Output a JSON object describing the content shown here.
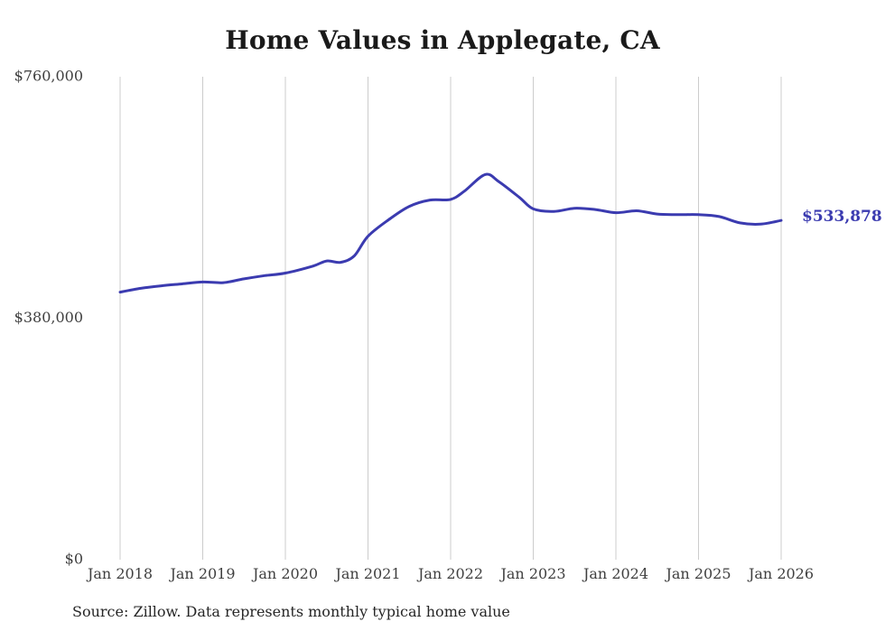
{
  "title": "Home Values in Applegate, CA",
  "source_note": "Source: Zillow. Data represents monthly typical home value",
  "end_label": "$533,878",
  "colors": {
    "line": "#3b3bb0",
    "grid": "#cccccc",
    "tick_text": "#3f3f3f",
    "title_text": "#1a1a1a"
  },
  "chart_data": {
    "type": "line",
    "title": "Home Values in Applegate, CA",
    "xlabel": "",
    "ylabel": "",
    "ylim": [
      0,
      760000
    ],
    "grid": "vertical-only",
    "legend": false,
    "x_tick_labels": [
      "Jan 2018",
      "Jan 2019",
      "Jan 2020",
      "Jan 2021",
      "Jan 2022",
      "Jan 2023",
      "Jan 2024",
      "Jan 2025",
      "Jan 2026"
    ],
    "y_ticks": [
      {
        "label": "$0",
        "value": 0
      },
      {
        "label": "$380,000",
        "value": 380000
      },
      {
        "label": "$760,000",
        "value": 760000
      }
    ],
    "series": [
      {
        "name": "Monthly typical home value",
        "end_value": 533878,
        "points_note": "x = months since Jan 2018, y = USD (estimated from plot)",
        "points": [
          [
            0,
            421000
          ],
          [
            3,
            427000
          ],
          [
            6,
            431000
          ],
          [
            9,
            434000
          ],
          [
            12,
            437000
          ],
          [
            15,
            436000
          ],
          [
            18,
            442000
          ],
          [
            21,
            447000
          ],
          [
            24,
            451000
          ],
          [
            28,
            462000
          ],
          [
            30,
            470000
          ],
          [
            32,
            468000
          ],
          [
            34,
            478000
          ],
          [
            36,
            509000
          ],
          [
            39,
            535000
          ],
          [
            42,
            556000
          ],
          [
            45,
            566000
          ],
          [
            48,
            567000
          ],
          [
            50,
            580000
          ],
          [
            53,
            606000
          ],
          [
            55,
            595000
          ],
          [
            58,
            570000
          ],
          [
            60,
            552000
          ],
          [
            63,
            548000
          ],
          [
            66,
            553000
          ],
          [
            69,
            551000
          ],
          [
            72,
            546000
          ],
          [
            75,
            549000
          ],
          [
            78,
            544000
          ],
          [
            81,
            543000
          ],
          [
            84,
            543000
          ],
          [
            87,
            540000
          ],
          [
            90,
            530000
          ],
          [
            93,
            528000
          ],
          [
            96,
            533878
          ]
        ]
      }
    ]
  }
}
